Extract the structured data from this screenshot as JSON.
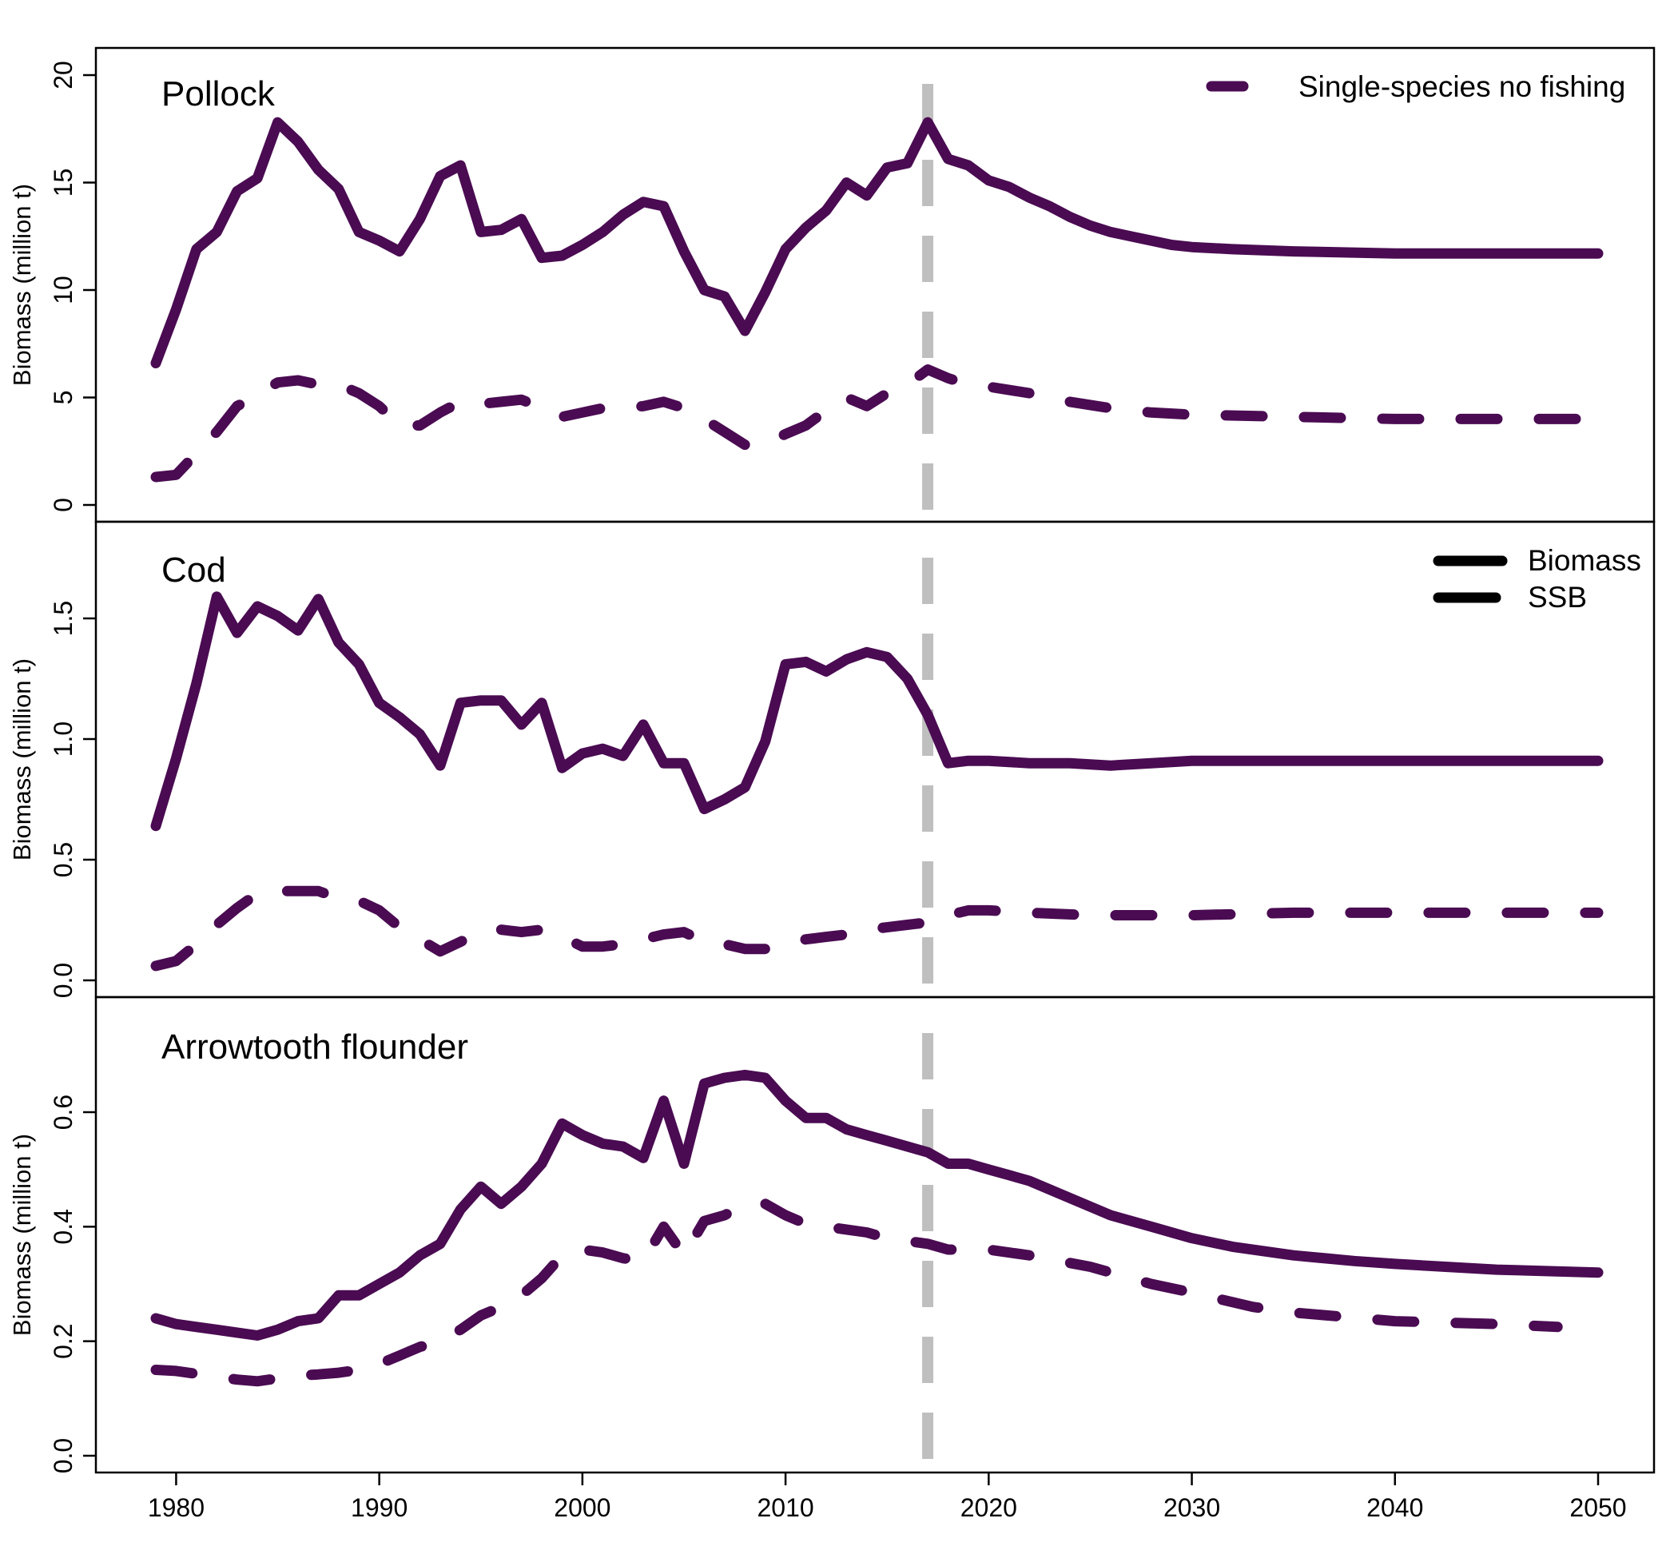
{
  "colors": {
    "series": "#4a0b52",
    "marker": "#bfbfbf",
    "axis": "#000000"
  },
  "legends": {
    "top": [
      {
        "label": "Single-species no fishing",
        "style": "solid"
      }
    ],
    "middle": [
      {
        "label": "Biomass",
        "style": "solid"
      },
      {
        "label": "SSB",
        "style": "dashed"
      }
    ]
  },
  "chart_data": [
    {
      "type": "line",
      "panel_label": "Pollock",
      "ylabel": "Biomass (million t)",
      "ylim": [
        0,
        20
      ],
      "yticks": [
        0,
        5,
        10,
        15,
        20
      ],
      "xlim": [
        1979,
        2050
      ],
      "xticks": [],
      "vertical_marker_x": 2017,
      "series": [
        {
          "name": "Biomass",
          "style": "solid",
          "x": [
            1979,
            1980,
            1981,
            1982,
            1983,
            1984,
            1985,
            1986,
            1987,
            1988,
            1989,
            1990,
            1991,
            1992,
            1993,
            1994,
            1995,
            1996,
            1997,
            1998,
            1999,
            2000,
            2001,
            2002,
            2003,
            2004,
            2005,
            2006,
            2007,
            2008,
            2009,
            2010,
            2011,
            2012,
            2013,
            2014,
            2015,
            2016,
            2017,
            2018,
            2019,
            2020,
            2021,
            2022,
            2023,
            2024,
            2025,
            2026,
            2027,
            2028,
            2029,
            2030,
            2032,
            2035,
            2040,
            2045,
            2050
          ],
          "y": [
            6.6,
            9.1,
            11.9,
            12.7,
            14.6,
            15.2,
            17.8,
            16.9,
            15.6,
            14.7,
            12.7,
            12.3,
            11.8,
            13.3,
            15.3,
            15.8,
            12.7,
            12.8,
            13.3,
            11.5,
            11.6,
            12.1,
            12.7,
            13.5,
            14.1,
            13.9,
            11.8,
            10.0,
            9.7,
            8.1,
            9.9,
            11.9,
            12.9,
            13.7,
            15.0,
            14.4,
            15.7,
            15.9,
            17.8,
            16.1,
            15.8,
            15.1,
            14.8,
            14.3,
            13.9,
            13.4,
            13.0,
            12.7,
            12.5,
            12.3,
            12.1,
            12.0,
            11.9,
            11.8,
            11.7,
            11.7,
            11.7
          ]
        },
        {
          "name": "SSB",
          "style": "dashed",
          "x": [
            1979,
            1980,
            1981,
            1982,
            1983,
            1984,
            1985,
            1986,
            1987,
            1988,
            1989,
            1990,
            1991,
            1992,
            1993,
            1994,
            1995,
            1996,
            1997,
            1998,
            1999,
            2000,
            2001,
            2002,
            2003,
            2004,
            2005,
            2006,
            2007,
            2008,
            2009,
            2010,
            2011,
            2012,
            2013,
            2014,
            2015,
            2016,
            2017,
            2018,
            2019,
            2020,
            2022,
            2024,
            2026,
            2028,
            2030,
            2035,
            2040,
            2045,
            2050
          ],
          "y": [
            1.3,
            1.4,
            2.4,
            3.4,
            4.6,
            5.1,
            5.7,
            5.8,
            5.6,
            5.6,
            5.2,
            4.6,
            3.7,
            3.7,
            4.3,
            4.8,
            4.7,
            4.8,
            4.9,
            4.5,
            4.1,
            4.3,
            4.5,
            4.5,
            4.6,
            4.8,
            4.5,
            4.0,
            3.4,
            2.8,
            2.8,
            3.3,
            3.7,
            4.4,
            5.0,
            4.6,
            5.2,
            5.6,
            6.3,
            5.9,
            5.6,
            5.5,
            5.2,
            4.8,
            4.5,
            4.3,
            4.2,
            4.1,
            4.0,
            4.0,
            4.0
          ]
        }
      ]
    },
    {
      "type": "line",
      "panel_label": "Cod",
      "ylabel": "Biomass (million t)",
      "ylim": [
        0,
        1.75
      ],
      "yticks": [
        0.0,
        0.5,
        1.0,
        1.5
      ],
      "ytick_labels": [
        "0.0",
        "0.5",
        "1.0",
        "1.5"
      ],
      "xlim": [
        1979,
        2050
      ],
      "xticks": [],
      "vertical_marker_x": 2017,
      "series": [
        {
          "name": "Biomass",
          "style": "solid",
          "x": [
            1979,
            1980,
            1981,
            1982,
            1983,
            1984,
            1985,
            1986,
            1987,
            1988,
            1989,
            1990,
            1991,
            1992,
            1993,
            1994,
            1995,
            1996,
            1997,
            1998,
            1999,
            2000,
            2001,
            2002,
            2003,
            2004,
            2005,
            2006,
            2007,
            2008,
            2009,
            2010,
            2011,
            2012,
            2013,
            2014,
            2015,
            2016,
            2017,
            2018,
            2019,
            2020,
            2022,
            2024,
            2026,
            2028,
            2030,
            2035,
            2040,
            2045,
            2050
          ],
          "y": [
            0.64,
            0.92,
            1.23,
            1.59,
            1.44,
            1.55,
            1.51,
            1.45,
            1.58,
            1.4,
            1.31,
            1.15,
            1.09,
            1.02,
            0.89,
            1.15,
            1.16,
            1.16,
            1.06,
            1.15,
            0.88,
            0.94,
            0.96,
            0.93,
            1.06,
            0.9,
            0.9,
            0.71,
            0.75,
            0.8,
            0.99,
            1.31,
            1.32,
            1.28,
            1.33,
            1.36,
            1.34,
            1.25,
            1.1,
            0.9,
            0.91,
            0.91,
            0.9,
            0.9,
            0.89,
            0.9,
            0.91,
            0.91,
            0.91,
            0.91,
            0.91
          ]
        },
        {
          "name": "SSB",
          "style": "dashed",
          "x": [
            1979,
            1980,
            1981,
            1982,
            1983,
            1984,
            1985,
            1986,
            1987,
            1988,
            1989,
            1990,
            1991,
            1992,
            1993,
            1994,
            1995,
            1996,
            1997,
            1998,
            1999,
            2000,
            2001,
            2002,
            2003,
            2004,
            2005,
            2006,
            2007,
            2008,
            2009,
            2010,
            2011,
            2012,
            2013,
            2014,
            2015,
            2016,
            2017,
            2018,
            2019,
            2020,
            2022,
            2025,
            2030,
            2035,
            2040,
            2045,
            2050
          ],
          "y": [
            0.06,
            0.08,
            0.15,
            0.23,
            0.3,
            0.36,
            0.37,
            0.37,
            0.37,
            0.34,
            0.33,
            0.29,
            0.22,
            0.17,
            0.12,
            0.16,
            0.2,
            0.21,
            0.2,
            0.21,
            0.18,
            0.14,
            0.14,
            0.15,
            0.17,
            0.19,
            0.2,
            0.16,
            0.15,
            0.13,
            0.13,
            0.15,
            0.17,
            0.18,
            0.19,
            0.21,
            0.22,
            0.23,
            0.24,
            0.27,
            0.29,
            0.29,
            0.28,
            0.27,
            0.27,
            0.28,
            0.28,
            0.28,
            0.28
          ]
        }
      ]
    },
    {
      "type": "line",
      "panel_label": "Arrowtooth flounder",
      "ylabel": "Biomass (million t)",
      "ylim": [
        0,
        0.77
      ],
      "yticks": [
        0.0,
        0.2,
        0.4,
        0.6
      ],
      "ytick_labels": [
        "0.0",
        "0.2",
        "0.4",
        "0.6"
      ],
      "xlim": [
        1979,
        2050
      ],
      "xticks": [
        1980,
        1990,
        2000,
        2010,
        2020,
        2030,
        2040,
        2050
      ],
      "vertical_marker_x": 2017,
      "series": [
        {
          "name": "Biomass",
          "style": "solid",
          "x": [
            1979,
            1980,
            1981,
            1982,
            1983,
            1984,
            1985,
            1986,
            1987,
            1988,
            1989,
            1990,
            1991,
            1992,
            1993,
            1994,
            1995,
            1996,
            1997,
            1998,
            1999,
            2000,
            2001,
            2002,
            2003,
            2004,
            2005,
            2006,
            2007,
            2008,
            2009,
            2010,
            2011,
            2012,
            2013,
            2014,
            2015,
            2016,
            2017,
            2018,
            2019,
            2020,
            2021,
            2022,
            2024,
            2026,
            2028,
            2030,
            2032,
            2035,
            2038,
            2040,
            2045,
            2050
          ],
          "y": [
            0.24,
            0.23,
            0.225,
            0.22,
            0.215,
            0.21,
            0.22,
            0.235,
            0.24,
            0.28,
            0.28,
            0.3,
            0.32,
            0.35,
            0.37,
            0.43,
            0.47,
            0.44,
            0.47,
            0.51,
            0.58,
            0.56,
            0.545,
            0.54,
            0.52,
            0.62,
            0.51,
            0.65,
            0.66,
            0.665,
            0.66,
            0.62,
            0.59,
            0.59,
            0.57,
            0.56,
            0.55,
            0.54,
            0.53,
            0.51,
            0.51,
            0.5,
            0.49,
            0.48,
            0.45,
            0.42,
            0.4,
            0.38,
            0.365,
            0.35,
            0.34,
            0.335,
            0.325,
            0.32
          ]
        },
        {
          "name": "SSB",
          "style": "dashed",
          "x": [
            1979,
            1980,
            1981,
            1982,
            1983,
            1984,
            1985,
            1986,
            1987,
            1988,
            1989,
            1990,
            1991,
            1992,
            1993,
            1994,
            1995,
            1996,
            1997,
            1998,
            1999,
            2000,
            2001,
            2002,
            2003,
            2004,
            2005,
            2006,
            2007,
            2008,
            2009,
            2010,
            2011,
            2012,
            2013,
            2014,
            2015,
            2016,
            2017,
            2018,
            2019,
            2020,
            2022,
            2025,
            2028,
            2030,
            2033,
            2035,
            2040,
            2045,
            2048
          ],
          "y": [
            0.15,
            0.148,
            0.143,
            0.138,
            0.133,
            0.13,
            0.135,
            0.14,
            0.142,
            0.145,
            0.15,
            0.16,
            0.175,
            0.19,
            0.2,
            0.22,
            0.245,
            0.26,
            0.28,
            0.31,
            0.35,
            0.36,
            0.355,
            0.345,
            0.34,
            0.4,
            0.35,
            0.41,
            0.42,
            0.44,
            0.44,
            0.42,
            0.405,
            0.4,
            0.395,
            0.39,
            0.38,
            0.375,
            0.37,
            0.36,
            0.36,
            0.36,
            0.35,
            0.33,
            0.3,
            0.285,
            0.26,
            0.25,
            0.235,
            0.23,
            0.225
          ]
        }
      ]
    }
  ]
}
